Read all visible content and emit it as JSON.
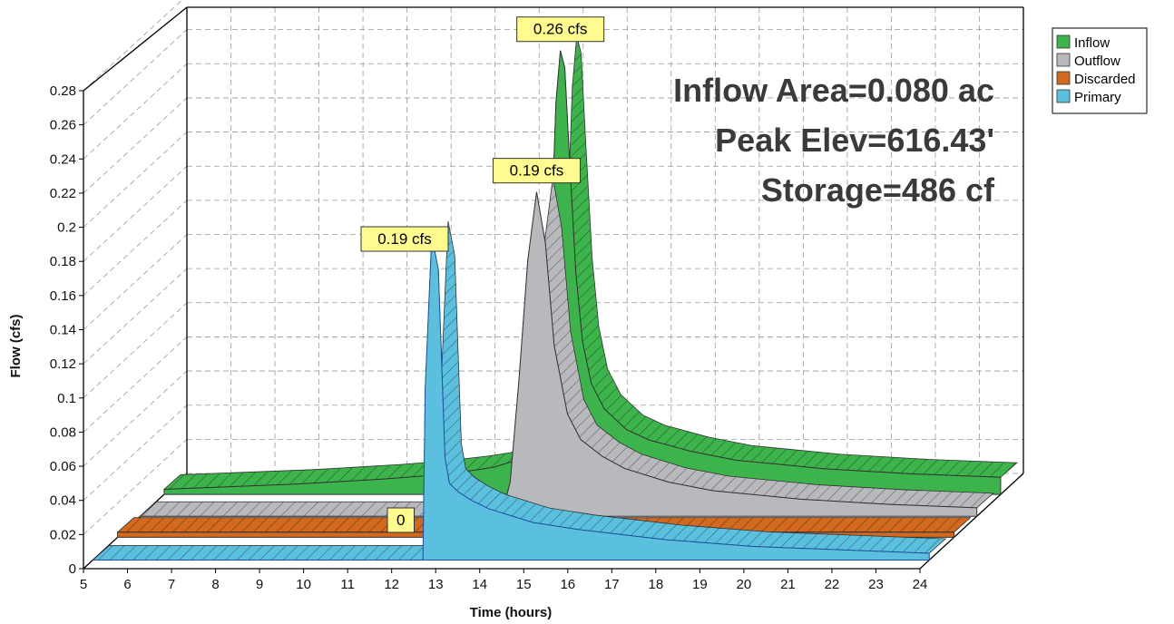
{
  "chart_data": {
    "type": "area",
    "xlabel": "Time  (hours)",
    "ylabel": "Flow  (cfs)",
    "xlim": [
      5,
      24
    ],
    "ylim": [
      0,
      0.28
    ],
    "x_ticks": [
      "5",
      "6",
      "7",
      "8",
      "9",
      "10",
      "11",
      "12",
      "13",
      "14",
      "15",
      "16",
      "17",
      "18",
      "19",
      "20",
      "21",
      "22",
      "23",
      "24"
    ],
    "y_ticks": [
      "0",
      "0.02",
      "0.04",
      "0.06",
      "0.08",
      "0.1",
      "0.12",
      "0.14",
      "0.16",
      "0.18",
      "0.2",
      "0.22",
      "0.24",
      "0.26",
      "0.28"
    ],
    "grid": true,
    "legend_position": "top-right",
    "series": [
      {
        "name": "Inflow",
        "color": "#3cb44b",
        "x": [
          5,
          8,
          10,
          11,
          12,
          12.5,
          13,
          13.4,
          13.6,
          13.75,
          13.9,
          14.0,
          14.1,
          14.2,
          14.35,
          14.5,
          14.7,
          15,
          15.5,
          16,
          17,
          18,
          20,
          22,
          24
        ],
        "y": [
          0.003,
          0.006,
          0.009,
          0.011,
          0.014,
          0.016,
          0.02,
          0.03,
          0.055,
          0.12,
          0.23,
          0.26,
          0.25,
          0.2,
          0.13,
          0.09,
          0.065,
          0.05,
          0.038,
          0.032,
          0.025,
          0.02,
          0.015,
          0.012,
          0.01
        ]
      },
      {
        "name": "Outflow",
        "color": "#b8b9bc",
        "x": [
          5,
          13.2,
          13.4,
          13.6,
          13.8,
          14.0,
          14.2,
          14.4,
          14.7,
          15,
          15.5,
          16,
          17,
          18,
          20,
          22,
          24
        ],
        "y": [
          0,
          0,
          0.02,
          0.08,
          0.15,
          0.19,
          0.16,
          0.1,
          0.06,
          0.045,
          0.035,
          0.028,
          0.02,
          0.015,
          0.01,
          0.007,
          0.005
        ]
      },
      {
        "name": "Discarded",
        "color": "#d2691e",
        "x": [
          5,
          24
        ],
        "y": [
          0.003,
          0.003
        ]
      },
      {
        "name": "Primary",
        "color": "#5bc0de",
        "x": [
          5,
          12.5,
          12.55,
          12.7,
          12.85,
          13.0,
          13.1,
          13.3,
          13.6,
          14,
          14.5,
          15,
          16,
          17,
          18,
          20,
          22,
          24
        ],
        "y": [
          0,
          0,
          0.1,
          0.19,
          0.17,
          0.06,
          0.045,
          0.04,
          0.035,
          0.03,
          0.026,
          0.022,
          0.018,
          0.015,
          0.012,
          0.008,
          0.006,
          0.004
        ]
      }
    ],
    "peak_labels": [
      {
        "series": "Inflow",
        "text": "0.26 cfs"
      },
      {
        "series": "Outflow",
        "text": "0.19 cfs"
      },
      {
        "series": "Primary",
        "text": "0.19 cfs"
      },
      {
        "series": "Discarded",
        "text": "0"
      }
    ],
    "info_lines": [
      "Inflow Area=0.080 ac",
      "Peak Elev=616.43'",
      "Storage=486 cf"
    ]
  }
}
